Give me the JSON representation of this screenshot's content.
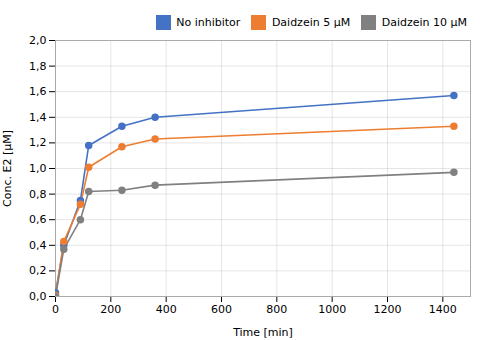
{
  "chart_data": {
    "type": "line",
    "x": [
      0,
      30,
      90,
      120,
      240,
      360,
      1440
    ],
    "series": [
      {
        "name": "No inhibitor",
        "color": "#4472C4",
        "marker": "circle",
        "values": [
          0.03,
          0.4,
          0.75,
          1.18,
          1.33,
          1.4,
          1.57
        ]
      },
      {
        "name": "Daidzein 5 μM",
        "color": "#ED7D31",
        "marker": "circle",
        "values": [
          0.01,
          0.43,
          0.72,
          1.01,
          1.17,
          1.23,
          1.33
        ]
      },
      {
        "name": "Daidzein 10 μM",
        "color": "#808080",
        "marker": "circle",
        "values": [
          0.0,
          0.37,
          0.6,
          0.82,
          0.83,
          0.87,
          0.97
        ]
      }
    ],
    "xlabel": "Time [min]",
    "ylabel": "Conc. E2 [μM]",
    "xlim": [
      0,
      1500
    ],
    "ylim": [
      0.0,
      2.0
    ],
    "xticks": [
      0,
      200,
      400,
      600,
      800,
      1000,
      1200,
      1400
    ],
    "yticks": [
      {
        "value": 0.0,
        "label": "0,0"
      },
      {
        "value": 0.2,
        "label": "0,2"
      },
      {
        "value": 0.4,
        "label": "0,4"
      },
      {
        "value": 0.6,
        "label": "0,6"
      },
      {
        "value": 0.8,
        "label": "0,8"
      },
      {
        "value": 1.0,
        "label": "1,0"
      },
      {
        "value": 1.2,
        "label": "1,2"
      },
      {
        "value": 1.4,
        "label": "1,4"
      },
      {
        "value": 1.6,
        "label": "1,6"
      },
      {
        "value": 1.8,
        "label": "1,8"
      },
      {
        "value": 2.0,
        "label": "2,0"
      }
    ],
    "grid": true,
    "legend": "top"
  }
}
